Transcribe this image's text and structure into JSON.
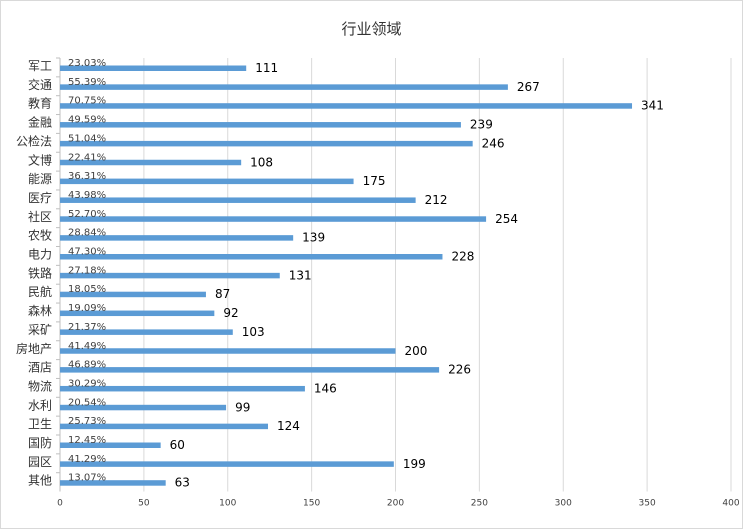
{
  "title": "行业领域",
  "chart_data": {
    "type": "bar",
    "orientation": "horizontal",
    "title": "行业领域",
    "categories": [
      "军工",
      "交通",
      "教育",
      "金融",
      "公检法",
      "文博",
      "能源",
      "医疗",
      "社区",
      "农牧",
      "电力",
      "铁路",
      "民航",
      "森林",
      "采矿",
      "房地产",
      "酒店",
      "物流",
      "水利",
      "卫生",
      "国防",
      "园区",
      "其他"
    ],
    "values": [
      111,
      267,
      341,
      239,
      246,
      108,
      175,
      212,
      254,
      139,
      228,
      131,
      87,
      92,
      103,
      200,
      226,
      146,
      99,
      124,
      60,
      199,
      63
    ],
    "percent_labels": [
      "23.03%",
      "55.39%",
      "70.75%",
      "49.59%",
      "51.04%",
      "22.41%",
      "36.31%",
      "43.98%",
      "52.70%",
      "28.84%",
      "47.30%",
      "27.18%",
      "18.05%",
      "19.09%",
      "21.37%",
      "41.49%",
      "46.89%",
      "30.29%",
      "20.54%",
      "25.73%",
      "12.45%",
      "41.29%",
      "13.07%"
    ],
    "xlim": [
      0,
      400
    ],
    "xticks": [
      0,
      50,
      100,
      150,
      200,
      250,
      300,
      350,
      400
    ],
    "grid": "vertical",
    "legend": "none",
    "bar_color": "#5b9bd5"
  }
}
